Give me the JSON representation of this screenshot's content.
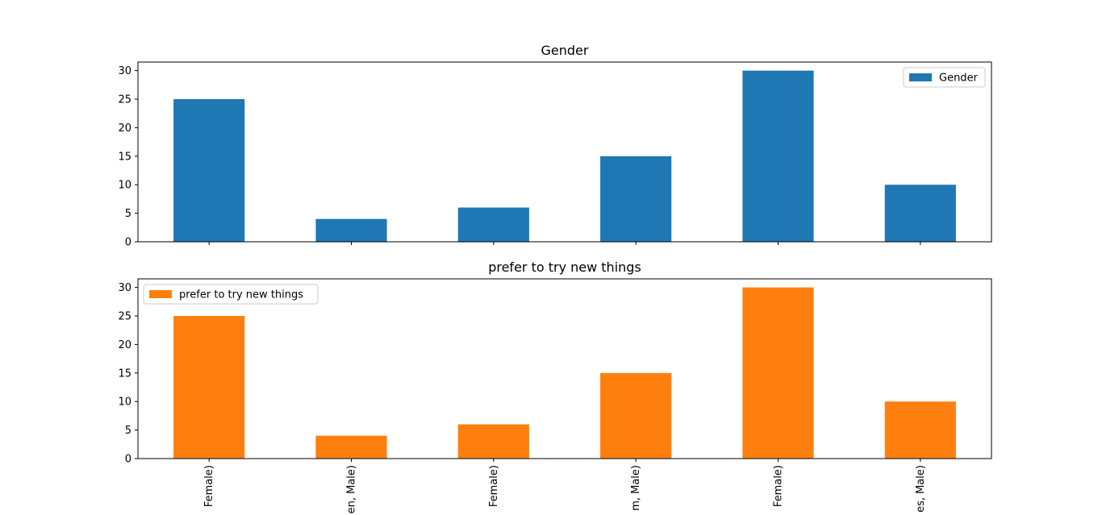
{
  "chart_data": [
    {
      "type": "bar",
      "title": "Gender",
      "categories": [
        "Female)",
        "en, Male)",
        "Female)",
        "m, Male)",
        "Female)",
        "es, Male)"
      ],
      "series": [
        {
          "name": "Gender",
          "values": [
            25,
            4,
            6,
            15,
            30,
            10
          ],
          "color": "#1f77b4"
        }
      ],
      "ylim": [
        0,
        31.5
      ],
      "yticks": [
        0,
        5,
        10,
        15,
        20,
        25,
        30
      ],
      "show_xticklabels": false,
      "legend": "top-right",
      "grid": false
    },
    {
      "type": "bar",
      "title": "prefer to try new things",
      "categories": [
        "Female)",
        "en, Male)",
        "Female)",
        "m, Male)",
        "Female)",
        "es, Male)"
      ],
      "series": [
        {
          "name": "prefer to try new things",
          "values": [
            25,
            4,
            6,
            15,
            30,
            10
          ],
          "color": "#ff7f0e"
        }
      ],
      "ylim": [
        0,
        31.5
      ],
      "yticks": [
        0,
        5,
        10,
        15,
        20,
        25,
        30
      ],
      "show_xticklabels": true,
      "legend": "top-left",
      "grid": false
    }
  ]
}
